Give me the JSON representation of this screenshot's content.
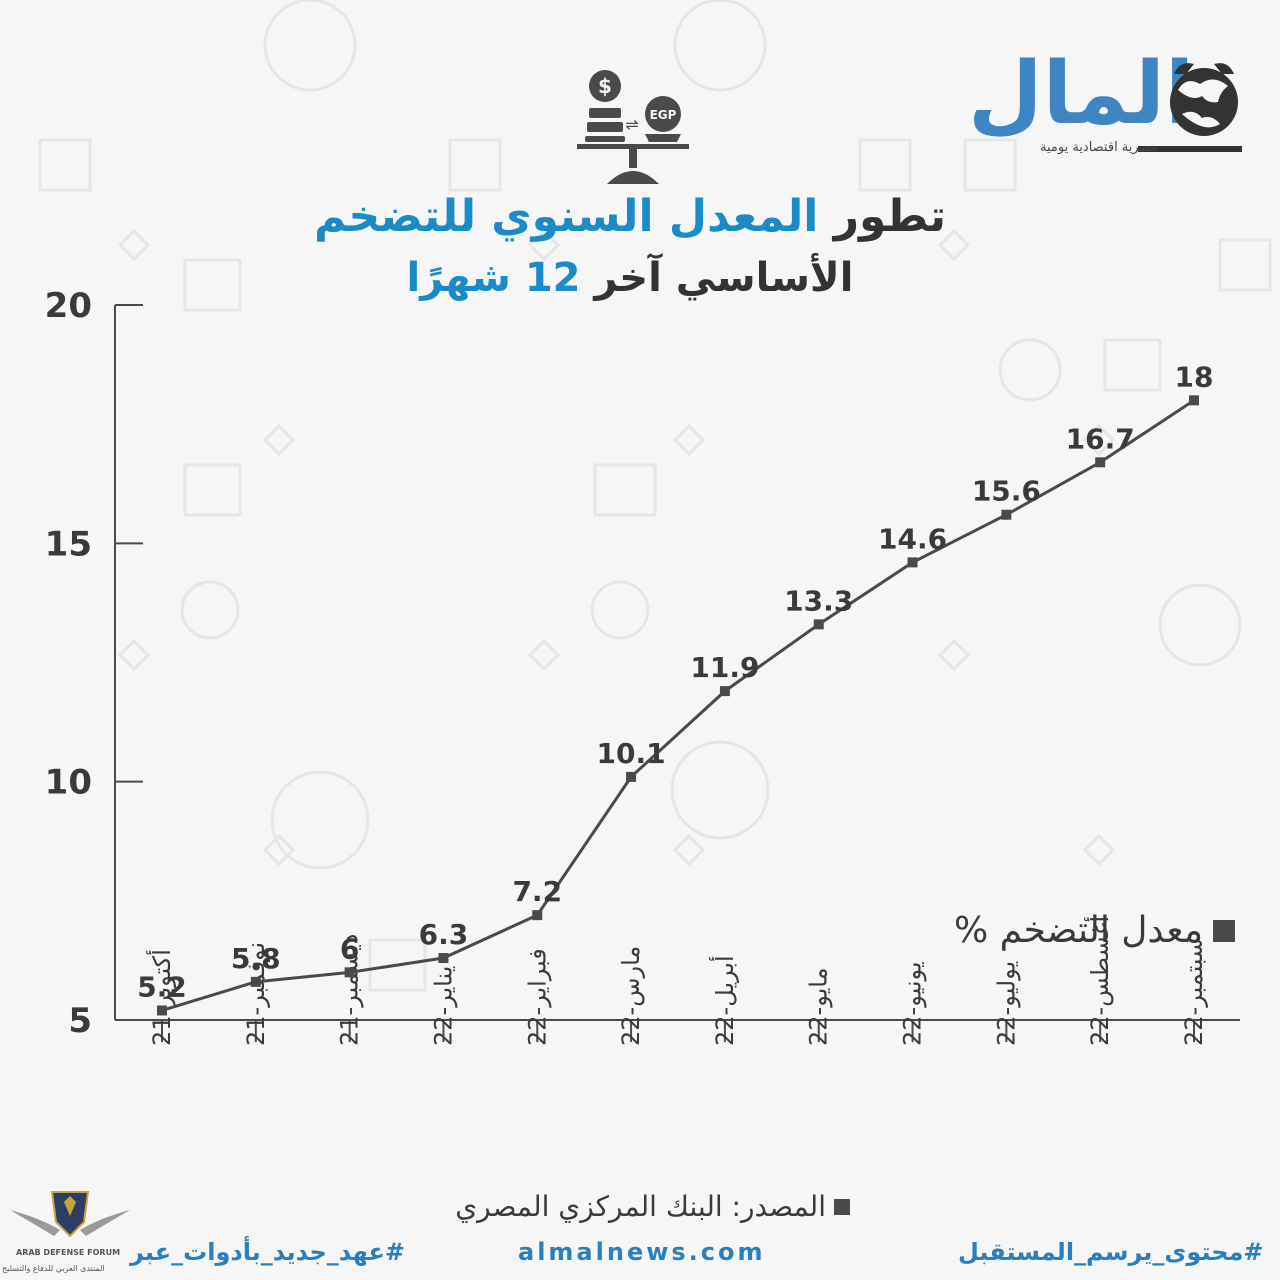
{
  "header": {
    "title_part1": "تطور",
    "title_part2": "المعدل السنوي للتضخم",
    "title_line2_part1": "الأساسي آخر",
    "title_line2_part2": "12 شهرًا"
  },
  "logo": {
    "name": "المال",
    "tagline": "مصرية اقتصادية يومية"
  },
  "icon": {
    "name": "currency-scale-icon",
    "labels": [
      "$",
      "EGP"
    ]
  },
  "legend": {
    "label": "معدل التضخم %"
  },
  "source": {
    "label": "المصدر: البنك المركزي المصري"
  },
  "footer": {
    "left": "#عهد_جديد_بأدوات_عبر",
    "middle": "almalnews.com",
    "right": "#محتوى_يرسم_المستقبل"
  },
  "watermark": {
    "line1": "ARAB DEFENSE FORUM",
    "line2": "المنتدى العربي للدفاع والتسليح"
  },
  "colors": {
    "accent": "#1b8ac9",
    "line": "#4a4a4a",
    "text": "#333333"
  },
  "chart_data": {
    "type": "line",
    "categories": [
      "أكتوبر-21",
      "نوفمبر-21",
      "ديسمبر-21",
      "يناير-22",
      "فبراير-22",
      "مارس-22",
      "أبريل-22",
      "مايو-22",
      "يونيو-22",
      "يوليو-22",
      "أغسطس-22",
      "سبتمبر-22"
    ],
    "series": [
      {
        "name": "معدل التضخم %",
        "values": [
          5.2,
          5.8,
          6,
          6.3,
          7.2,
          10.1,
          11.9,
          13.3,
          14.6,
          15.6,
          16.7,
          18
        ]
      }
    ],
    "data_labels": [
      "5.2",
      "5.8",
      "6",
      "6.3",
      "7.2",
      "10.1",
      "11.9",
      "13.3",
      "14.6",
      "15.6",
      "16.7",
      "18"
    ],
    "yticks": [
      5,
      10,
      15,
      20
    ],
    "ylim": [
      5,
      20
    ],
    "grid": false,
    "legend_position": "right"
  }
}
